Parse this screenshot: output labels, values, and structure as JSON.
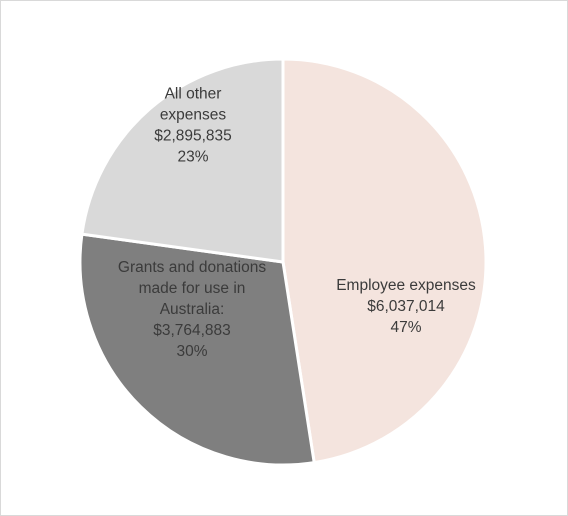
{
  "chart_data": {
    "type": "pie",
    "title": "",
    "start_angle_deg": 0,
    "direction": "clockwise",
    "slices": [
      {
        "label_lines": [
          "Employee expenses"
        ],
        "value": 6037014,
        "value_text": "$6,037,014",
        "percent_text": "47%",
        "color": "#f4e4de",
        "label_color": "#3b3b3b"
      },
      {
        "label_lines": [
          "Grants and donations",
          "made for use in",
          "Australia:"
        ],
        "value": 3764883,
        "value_text": "$3,764,883",
        "percent_text": "30%",
        "color": "#7f7f7f",
        "label_color": "#ffffff"
      },
      {
        "label_lines": [
          "All other",
          "expenses"
        ],
        "value": 2895835,
        "value_text": "$2,895,835",
        "percent_text": "23%",
        "color": "#d9d9d9",
        "label_color": "#3b3b3b"
      }
    ],
    "slice_border_color": "#ffffff",
    "legend": "none",
    "grid": false
  }
}
